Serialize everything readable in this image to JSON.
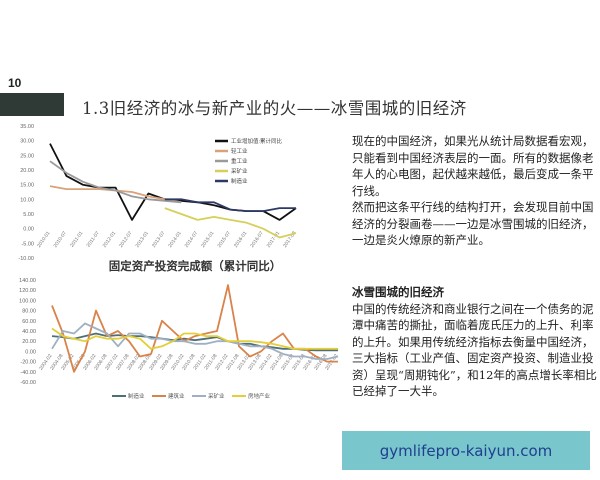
{
  "page_number": "10",
  "title": "1.3旧经济的冰与新产业的火——冰雪围城的旧经济",
  "right_text": {
    "para1": "现在的中国经济，如果光从统计局数据看宏观，只能看到中国经济表层的一面。所有的数据像老年人的心电图，起伏越来越低，最后变成一条平行线。",
    "para2": "然而把这条平行线的结构打开，会发现目前中国经济的分裂画卷——一边是冰雪围城的旧经济，一边是炎火燎原的新产业。",
    "heading": "冰雪围城的旧经济",
    "para3": "中国的传统经济和商业银行之间在一个债务的泥潭中痛苦的撕扯，面临着庞氏压力的上升、利率的上升。如果用传统经济指标去衡量中国经济，三大指标（工业产值、固定资产投资、制造业投资）呈现“周期钝化”，和12年的高点增长率相比已经掉了一大半。"
  },
  "watermark": "gymlifepro-kaiyun.com",
  "chart_data": [
    {
      "type": "line",
      "title": "固定资产投资完成额（累计同比）",
      "ylim": [
        -10,
        35
      ],
      "y_ticks": [
        "35.00",
        "30.00",
        "25.00",
        "20.00",
        "15.00",
        "10.00",
        "5.00",
        "0.00",
        "-5.00",
        "-10.00"
      ],
      "x": [
        "2010-01",
        "2010-07",
        "2011-01",
        "2011-07",
        "2012-01",
        "2012-07",
        "2013-01",
        "2013-07",
        "2014-01",
        "2014-07",
        "2015-01",
        "2015-07",
        "2016-01",
        "2016-07",
        "2017-01",
        "2017-08"
      ],
      "legend": "top-right",
      "series": [
        {
          "name": "工业增加值:累计同比",
          "color": "#111111",
          "values": [
            29,
            18,
            15,
            14,
            14,
            3,
            12,
            10,
            9.5,
            9,
            8,
            6.5,
            6,
            6,
            3,
            7
          ]
        },
        {
          "name": "轻工业",
          "color": "#d9a27a",
          "values": [
            14.5,
            13.5,
            13.5,
            13.5,
            13,
            12.5,
            11,
            10,
            9,
            null,
            null,
            null,
            null,
            null,
            null,
            null
          ]
        },
        {
          "name": "重工业",
          "color": "#9a9a9a",
          "values": [
            23,
            19,
            16,
            14,
            13,
            11,
            10,
            9.5,
            9,
            null,
            null,
            null,
            null,
            null,
            null,
            null
          ]
        },
        {
          "name": "采矿业",
          "color": "#d6cf5a",
          "values": [
            null,
            null,
            null,
            null,
            null,
            null,
            null,
            7,
            5,
            3,
            4,
            3,
            2,
            0,
            -3,
            -1.5
          ]
        },
        {
          "name": "制造业",
          "color": "#2e3a66",
          "values": [
            null,
            null,
            null,
            null,
            null,
            null,
            null,
            10,
            10,
            9,
            9,
            6.5,
            6,
            6,
            7,
            7
          ]
        }
      ]
    },
    {
      "type": "line",
      "ylim": [
        -60,
        140
      ],
      "y_ticks": [
        "140.00",
        "120.00",
        "100.00",
        "80.00",
        "60.00",
        "40.00",
        "20.00",
        "0.00",
        "-20.00",
        "-40.00",
        "-60.00"
      ],
      "x": [
        "2004-02",
        "2004-08",
        "2005-02",
        "2005-08",
        "2006-02",
        "2006-08",
        "2007-02",
        "2007-08",
        "2008-02",
        "2008-08",
        "2009-02",
        "2009-08",
        "2010-02",
        "2010-08",
        "2011-02",
        "2011-08",
        "2012-02",
        "2012-08",
        "2013-02",
        "2013-08",
        "2014-02",
        "2014-08",
        "2015-02",
        "2015-08",
        "2016-02",
        "2016-08",
        "2017-02"
      ],
      "legend": "bottom",
      "series": [
        {
          "name": "制造业",
          "color": "#4f6f78",
          "values": [
            30,
            28,
            25,
            30,
            35,
            30,
            32,
            30,
            30,
            28,
            25,
            22,
            25,
            22,
            25,
            28,
            20,
            15,
            15,
            10,
            8,
            5,
            5,
            3,
            2,
            2,
            2
          ]
        },
        {
          "name": "建筑业",
          "color": "#d9834a",
          "values": [
            90,
            35,
            -40,
            0,
            80,
            30,
            40,
            20,
            -10,
            -5,
            60,
            40,
            20,
            30,
            35,
            40,
            130,
            10,
            -10,
            0,
            20,
            35,
            5,
            5,
            -10,
            -20,
            -20
          ]
        },
        {
          "name": "采矿业",
          "color": "#9fb0c2",
          "values": [
            5,
            40,
            35,
            55,
            45,
            35,
            10,
            35,
            35,
            25,
            25,
            20,
            20,
            15,
            15,
            20,
            20,
            15,
            10,
            10,
            5,
            -5,
            -10,
            -10,
            -15,
            -15,
            -10
          ]
        },
        {
          "name": "房地产业",
          "color": "#e3cf3a",
          "values": [
            45,
            30,
            25,
            20,
            30,
            25,
            25,
            30,
            25,
            5,
            10,
            20,
            35,
            35,
            30,
            30,
            20,
            20,
            20,
            18,
            15,
            10,
            5,
            5,
            5,
            5,
            5
          ]
        }
      ]
    }
  ]
}
